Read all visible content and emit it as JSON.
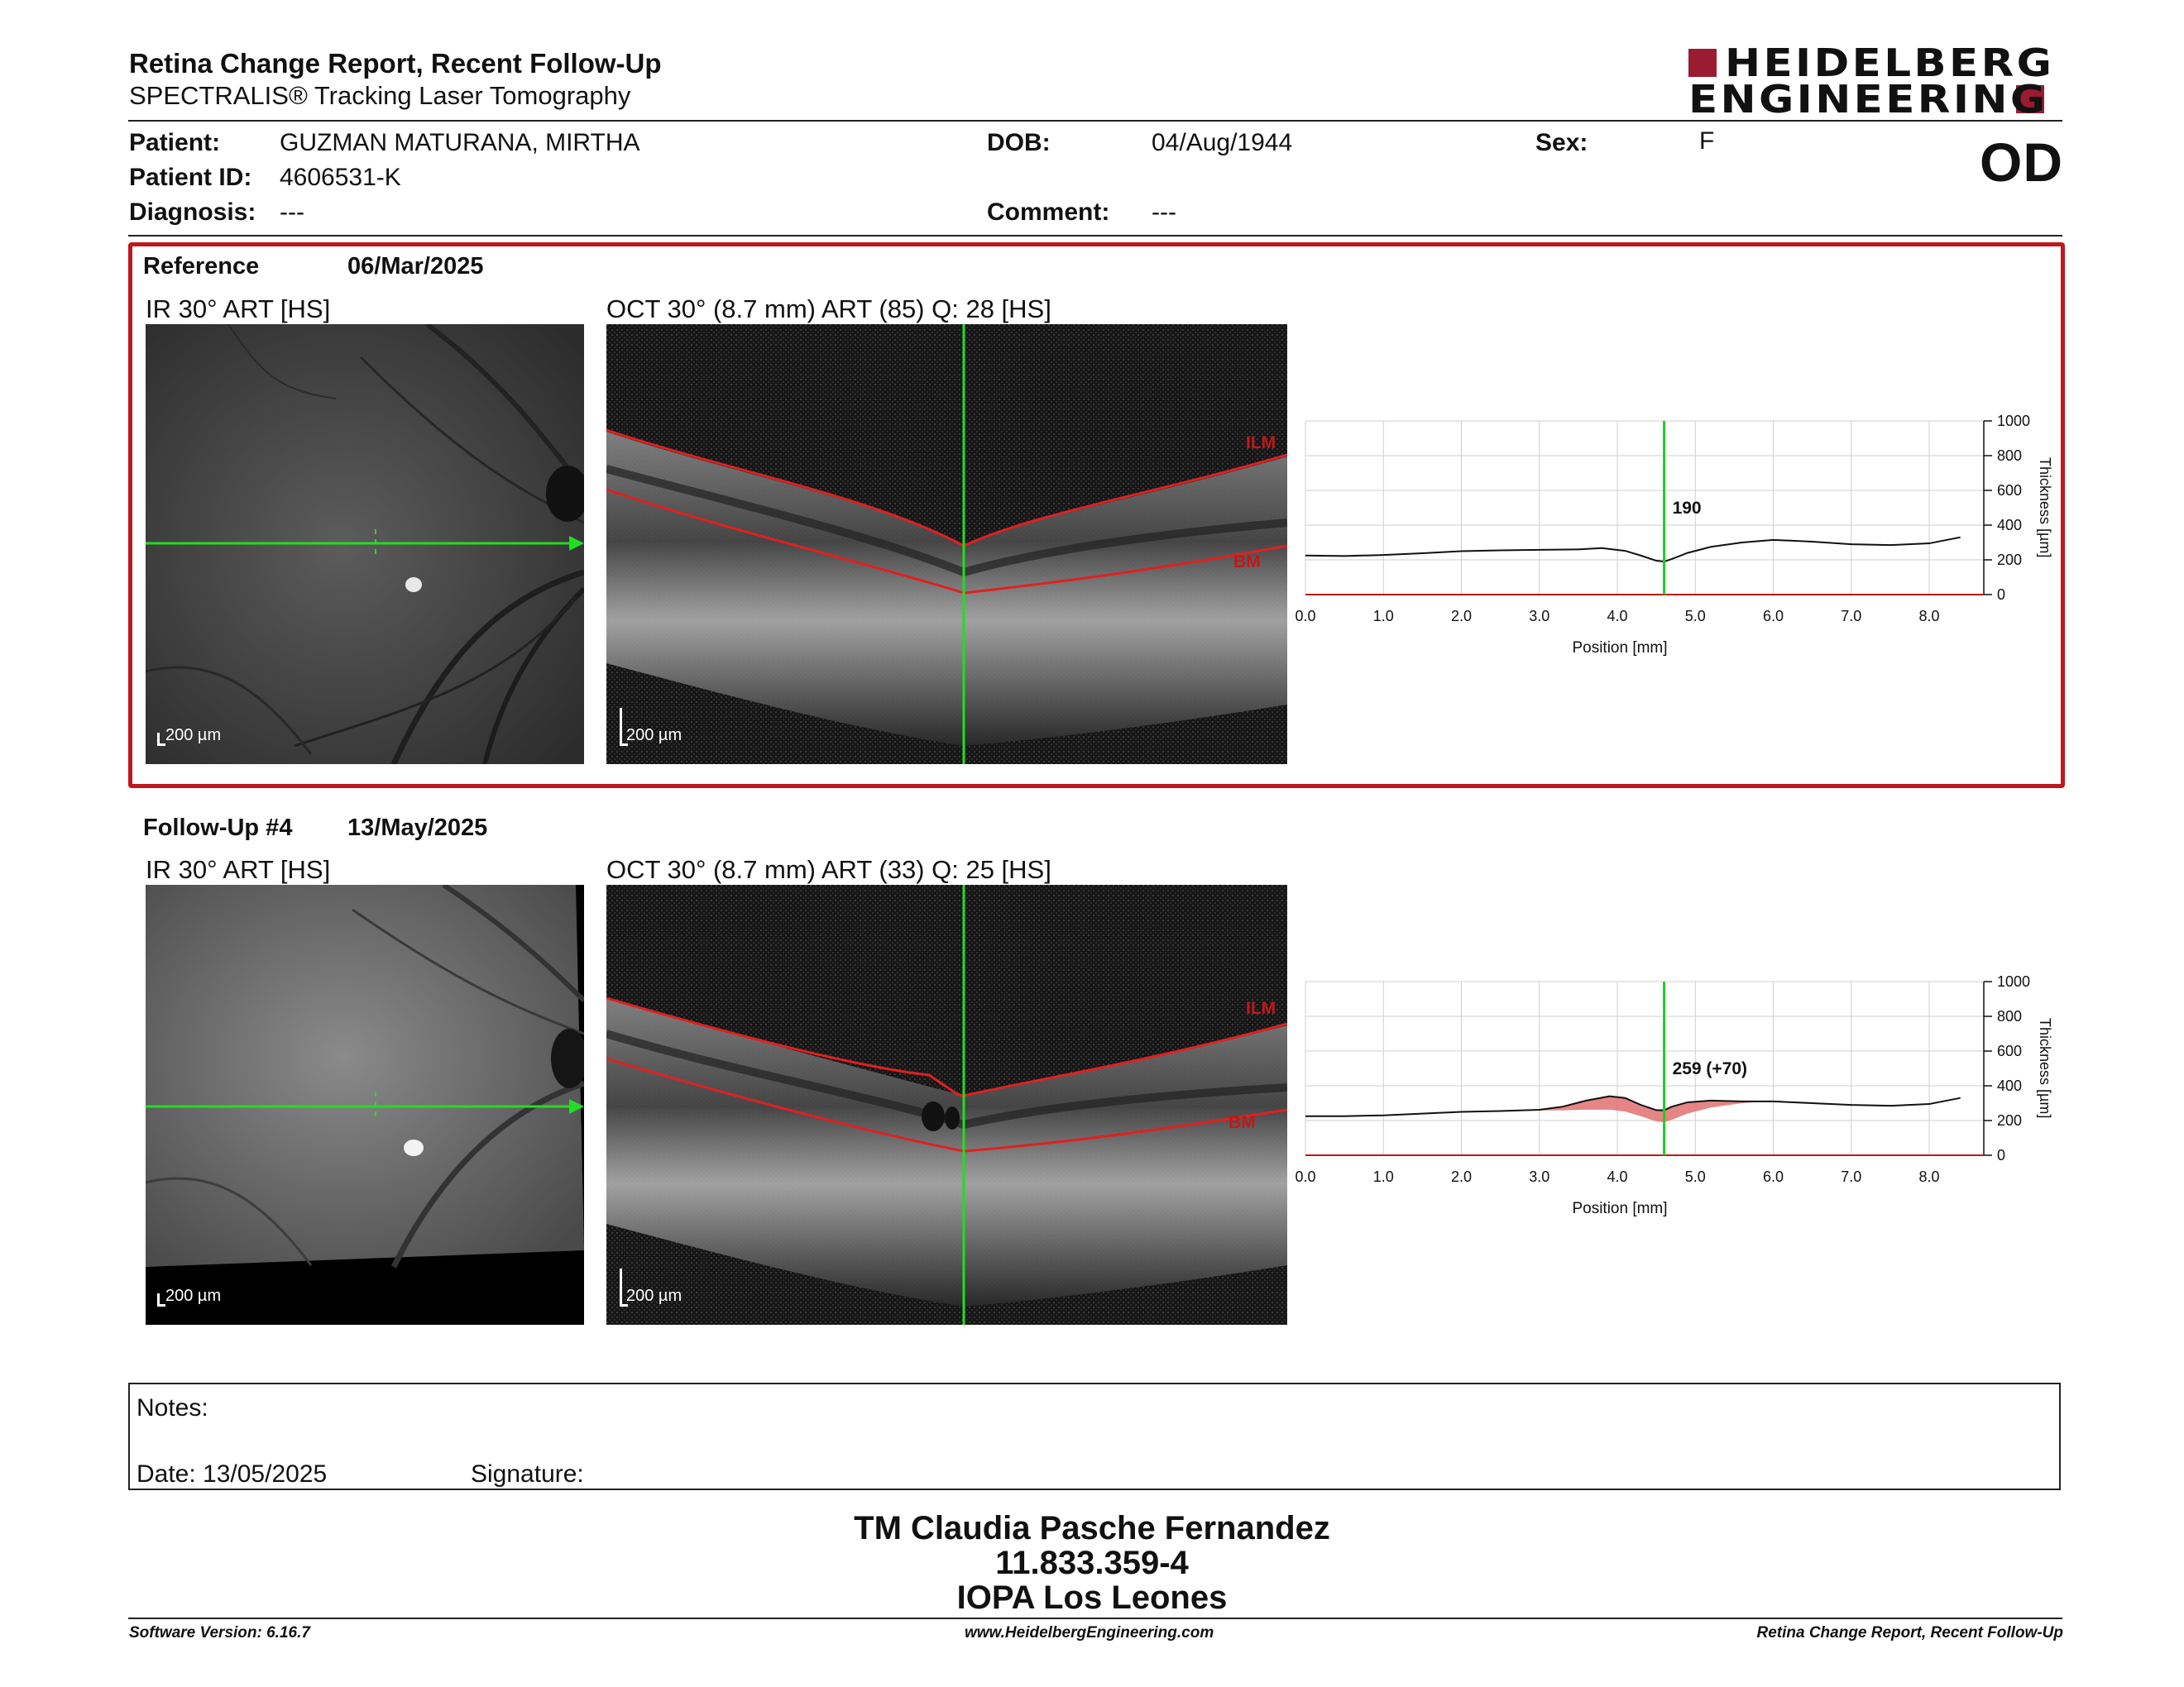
{
  "header": {
    "title": "Retina Change Report, Recent Follow-Up",
    "subtitle": "SPECTRALIS® Tracking Laser Tomography",
    "logo_line1": "HEIDELBERG",
    "logo_line2": "ENGINEERING",
    "eye": "OD"
  },
  "patient": {
    "name_label": "Patient:",
    "name": "GUZMAN MATURANA, MIRTHA",
    "id_label": "Patient ID:",
    "id": "4606531-K",
    "diagnosis_label": "Diagnosis:",
    "diagnosis": "---",
    "dob_label": "DOB:",
    "dob": "04/Aug/1944",
    "comment_label": "Comment:",
    "comment": "---",
    "sex_label": "Sex:",
    "sex": "F"
  },
  "reference": {
    "label": "Reference",
    "date": "06/Mar/2025",
    "ir_label": "IR 30° ART [HS]",
    "oct_label": "OCT 30° (8.7 mm) ART (85) Q: 28 [HS]",
    "ir_scale": "200 µm",
    "oct_scale": "200 µm",
    "ilm": "ILM",
    "bm": "BM"
  },
  "followup": {
    "label": "Follow-Up #4",
    "date": "13/May/2025",
    "ir_label": "IR 30° ART [HS]",
    "oct_label": "OCT 30° (8.7 mm) ART (33) Q: 25 [HS]",
    "ir_scale": "200 µm",
    "oct_scale": "200 µm",
    "ilm": "ILM",
    "bm": "BM"
  },
  "chart_data": [
    {
      "type": "line",
      "xlabel": "Position [mm]",
      "ylabel": "Thickness [µm]",
      "xlim": [
        0,
        8.7
      ],
      "ylim": [
        0,
        1000
      ],
      "xticks": [
        "0.0",
        "1.0",
        "2.0",
        "3.0",
        "4.0",
        "5.0",
        "6.0",
        "7.0",
        "8.0"
      ],
      "yticks": [
        "0",
        "200",
        "400",
        "600",
        "800",
        "1000"
      ],
      "grid": true,
      "cursor_x": 4.6,
      "cursor_label": "190",
      "series": [
        {
          "x": [
            0.0,
            0.5,
            1.0,
            1.5,
            2.0,
            2.5,
            3.0,
            3.5,
            3.8,
            4.1,
            4.3,
            4.5,
            4.6,
            4.7,
            4.9,
            5.2,
            5.6,
            6.0,
            6.5,
            7.0,
            7.5,
            8.0,
            8.4
          ],
          "values": [
            225,
            222,
            228,
            238,
            250,
            255,
            258,
            260,
            268,
            252,
            225,
            195,
            190,
            205,
            240,
            275,
            300,
            315,
            305,
            290,
            285,
            295,
            330
          ]
        }
      ]
    },
    {
      "type": "line",
      "xlabel": "Position [mm]",
      "ylabel": "Thickness [µm]",
      "xlim": [
        0,
        8.7
      ],
      "ylim": [
        0,
        1000
      ],
      "xticks": [
        "0.0",
        "1.0",
        "2.0",
        "3.0",
        "4.0",
        "5.0",
        "6.0",
        "7.0",
        "8.0"
      ],
      "yticks": [
        "0",
        "200",
        "400",
        "600",
        "800",
        "1000"
      ],
      "grid": true,
      "cursor_x": 4.6,
      "cursor_label": "259 (+70)",
      "series": [
        {
          "x": [
            0.0,
            0.5,
            1.0,
            1.5,
            2.0,
            2.5,
            3.0,
            3.3,
            3.6,
            3.9,
            4.1,
            4.3,
            4.5,
            4.6,
            4.7,
            4.9,
            5.2,
            5.6,
            6.0,
            6.5,
            7.0,
            7.5,
            8.0,
            8.4
          ],
          "values": [
            225,
            225,
            230,
            240,
            250,
            255,
            262,
            280,
            315,
            340,
            330,
            290,
            260,
            259,
            280,
            305,
            315,
            310,
            310,
            300,
            290,
            285,
            295,
            330
          ]
        }
      ]
    }
  ],
  "notes": {
    "label": "Notes:",
    "date_label": "Date: 13/05/2025",
    "signature_label": "Signature:"
  },
  "signatory": {
    "name": "TM Claudia Pasche Fernandez",
    "id": "11.833.359-4",
    "org": "IOPA Los Leones"
  },
  "footer": {
    "software": "Software Version: 6.16.7",
    "website": "www.HeidelbergEngineering.com",
    "report": "Retina Change Report, Recent Follow-Up"
  }
}
